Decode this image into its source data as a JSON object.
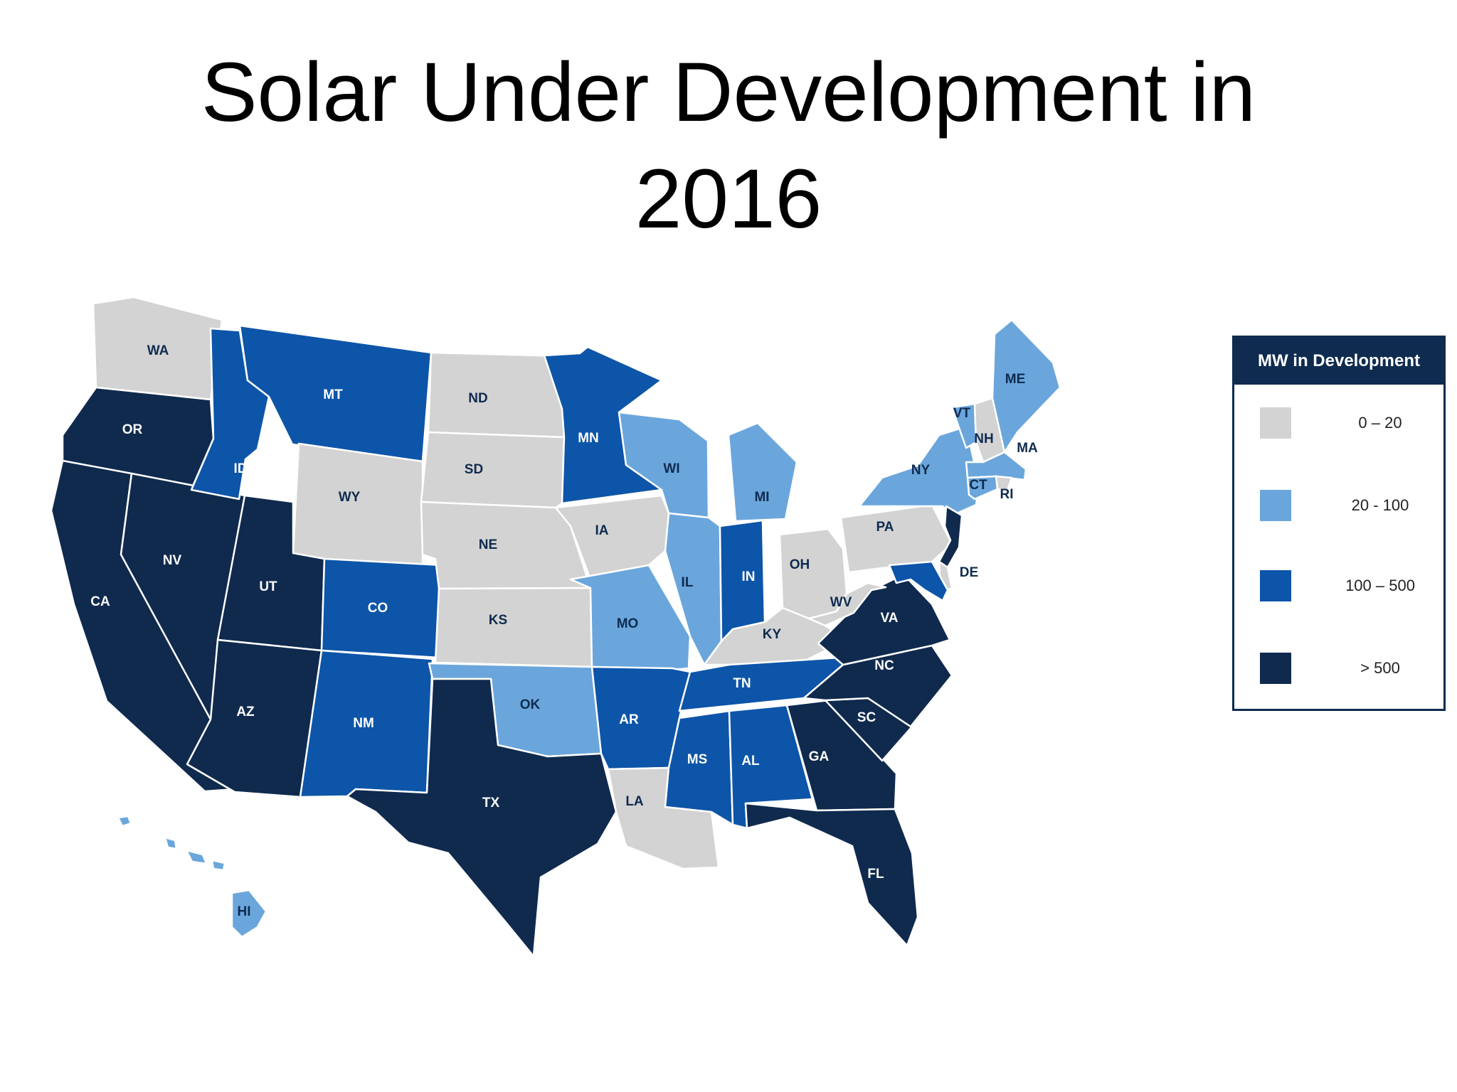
{
  "title": {
    "line1": "Solar Under Development in",
    "line2": "2016"
  },
  "legend": {
    "title": "MW in Development",
    "categories": [
      {
        "label": "0 – 20",
        "color": "#d3d3d3"
      },
      {
        "label": "20 - 100",
        "color": "#6aa6dc"
      },
      {
        "label": "100 – 500",
        "color": "#0d55a8"
      },
      {
        "label": "> 500",
        "color": "#102a4e"
      }
    ]
  },
  "states": [
    {
      "abbr": "WA",
      "category": 0
    },
    {
      "abbr": "OR",
      "category": 3
    },
    {
      "abbr": "CA",
      "category": 3
    },
    {
      "abbr": "NV",
      "category": 3
    },
    {
      "abbr": "ID",
      "category": 2
    },
    {
      "abbr": "MT",
      "category": 2
    },
    {
      "abbr": "WY",
      "category": 0
    },
    {
      "abbr": "UT",
      "category": 3
    },
    {
      "abbr": "AZ",
      "category": 3
    },
    {
      "abbr": "CO",
      "category": 2
    },
    {
      "abbr": "NM",
      "category": 2
    },
    {
      "abbr": "ND",
      "category": 0
    },
    {
      "abbr": "SD",
      "category": 0
    },
    {
      "abbr": "NE",
      "category": 0
    },
    {
      "abbr": "KS",
      "category": 0
    },
    {
      "abbr": "OK",
      "category": 1
    },
    {
      "abbr": "TX",
      "category": 3
    },
    {
      "abbr": "MN",
      "category": 2
    },
    {
      "abbr": "IA",
      "category": 0
    },
    {
      "abbr": "MO",
      "category": 1
    },
    {
      "abbr": "AR",
      "category": 2
    },
    {
      "abbr": "LA",
      "category": 0
    },
    {
      "abbr": "WI",
      "category": 1
    },
    {
      "abbr": "IL",
      "category": 1
    },
    {
      "abbr": "MI",
      "category": 1
    },
    {
      "abbr": "IN",
      "category": 2
    },
    {
      "abbr": "OH",
      "category": 0
    },
    {
      "abbr": "KY",
      "category": 0
    },
    {
      "abbr": "TN",
      "category": 2
    },
    {
      "abbr": "MS",
      "category": 2
    },
    {
      "abbr": "AL",
      "category": 2
    },
    {
      "abbr": "GA",
      "category": 3
    },
    {
      "abbr": "FL",
      "category": 3
    },
    {
      "abbr": "SC",
      "category": 3
    },
    {
      "abbr": "NC",
      "category": 3
    },
    {
      "abbr": "VA",
      "category": 3
    },
    {
      "abbr": "WV",
      "category": 0
    },
    {
      "abbr": "PA",
      "category": 0
    },
    {
      "abbr": "NY",
      "category": 1
    },
    {
      "abbr": "VT",
      "category": 1
    },
    {
      "abbr": "NH",
      "category": 0
    },
    {
      "abbr": "ME",
      "category": 1
    },
    {
      "abbr": "MA",
      "category": 1
    },
    {
      "abbr": "RI",
      "category": 0
    },
    {
      "abbr": "CT",
      "category": 1
    },
    {
      "abbr": "NJ",
      "category": 3
    },
    {
      "abbr": "DE",
      "category": 0
    },
    {
      "abbr": "MD",
      "category": 2
    },
    {
      "abbr": "HI",
      "category": 1
    }
  ]
}
